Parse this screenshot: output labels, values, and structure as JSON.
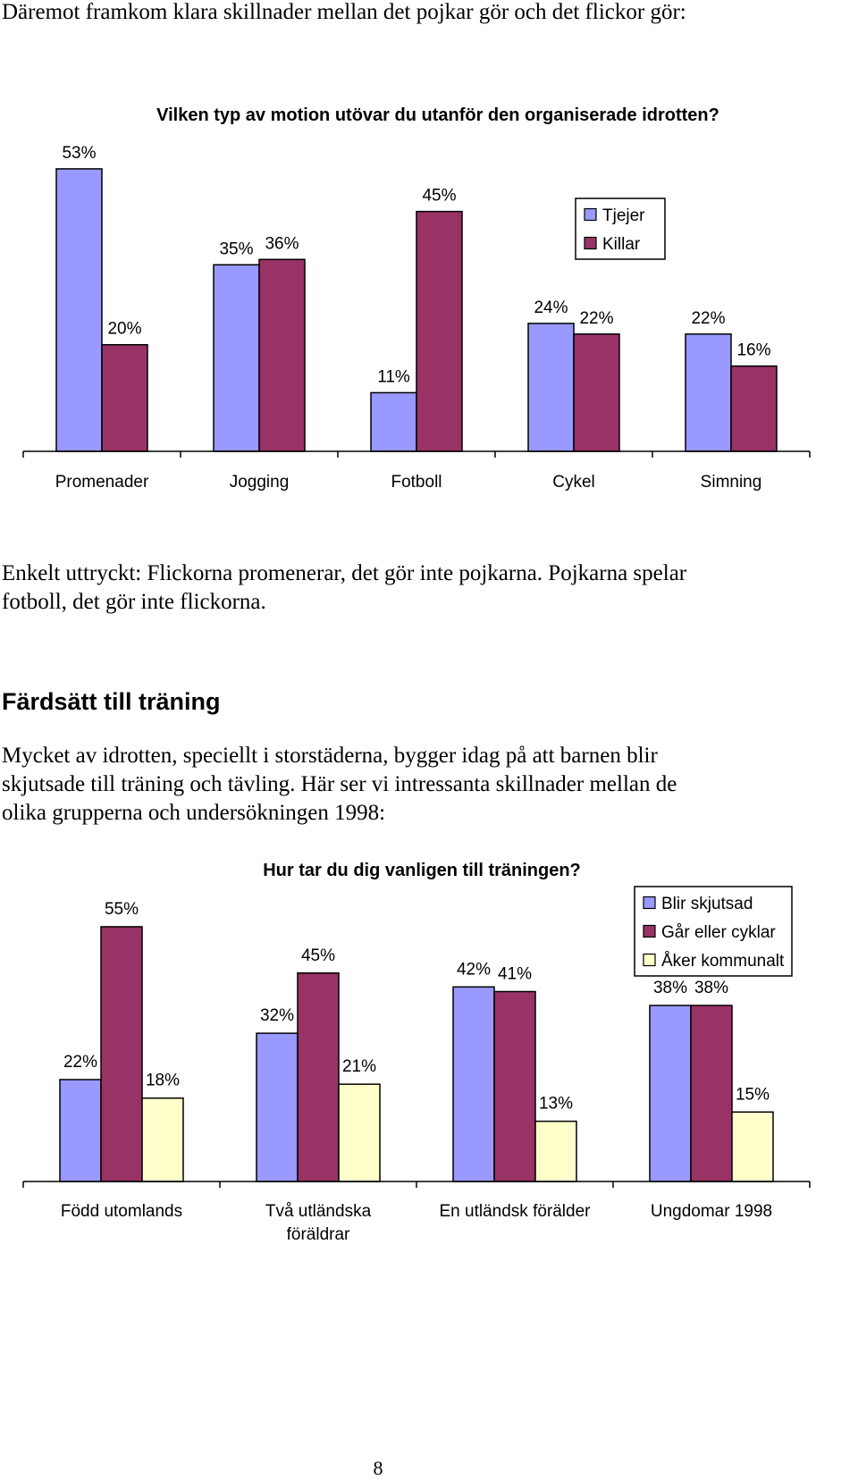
{
  "intro_text": "Däremot framkom klara skillnader mellan det pojkar gör och det flickor gör:",
  "chart1_caption": "Enkelt uttryckt: Flickorna promenerar, det gör inte pojkarna. Pojkarna spelar fotboll, det gör inte flickorna.",
  "section_heading": "Färdsätt till träning",
  "section_text": "Mycket av idrotten, speciellt i storstäderna, bygger idag på att barnen blir skjutsade till träning och tävling. Här ser vi intressanta skillnader mellan de olika grupperna och undersökningen 1998:",
  "page_number": "8",
  "colors": {
    "blue": "#9999ff",
    "maroon": "#993366",
    "cream": "#ffffcc"
  },
  "chart_data": [
    {
      "type": "bar",
      "title": "Vilken typ av motion utövar du utanför den organiserade idrotten?",
      "categories": [
        "Promenader",
        "Jogging",
        "Fotboll",
        "Cykel",
        "Simning"
      ],
      "series": [
        {
          "name": "Tjejer",
          "values": [
            53,
            35,
            11,
            24,
            22
          ],
          "labels": [
            "53%",
            "35%",
            "11%",
            "24%",
            "22%"
          ]
        },
        {
          "name": "Killar",
          "values": [
            20,
            36,
            45,
            22,
            16
          ],
          "labels": [
            "20%",
            "36%",
            "45%",
            "22%",
            "16%"
          ]
        }
      ],
      "unit": "%",
      "ylim": [
        0,
        55
      ],
      "legend_position": "top-right",
      "grid": false
    },
    {
      "type": "bar",
      "title": "Hur tar du dig vanligen till träningen?",
      "categories": [
        "Född utomlands",
        "Två utländska\nföräldrar",
        "En utländsk förälder",
        "Ungdomar 1998"
      ],
      "series": [
        {
          "name": "Blir skjutsad",
          "values": [
            22,
            32,
            42,
            38
          ],
          "labels": [
            "22%",
            "32%",
            "42%",
            "38%"
          ]
        },
        {
          "name": "Går eller cyklar",
          "values": [
            55,
            45,
            41,
            38
          ],
          "labels": [
            "55%",
            "45%",
            "41%",
            "38%"
          ]
        },
        {
          "name": "Åker kommunalt",
          "values": [
            18,
            21,
            13,
            15
          ],
          "labels": [
            "18%",
            "21%",
            "13%",
            "15%"
          ]
        }
      ],
      "unit": "%",
      "ylim": [
        0,
        60
      ],
      "legend_position": "top-right",
      "grid": false
    }
  ]
}
